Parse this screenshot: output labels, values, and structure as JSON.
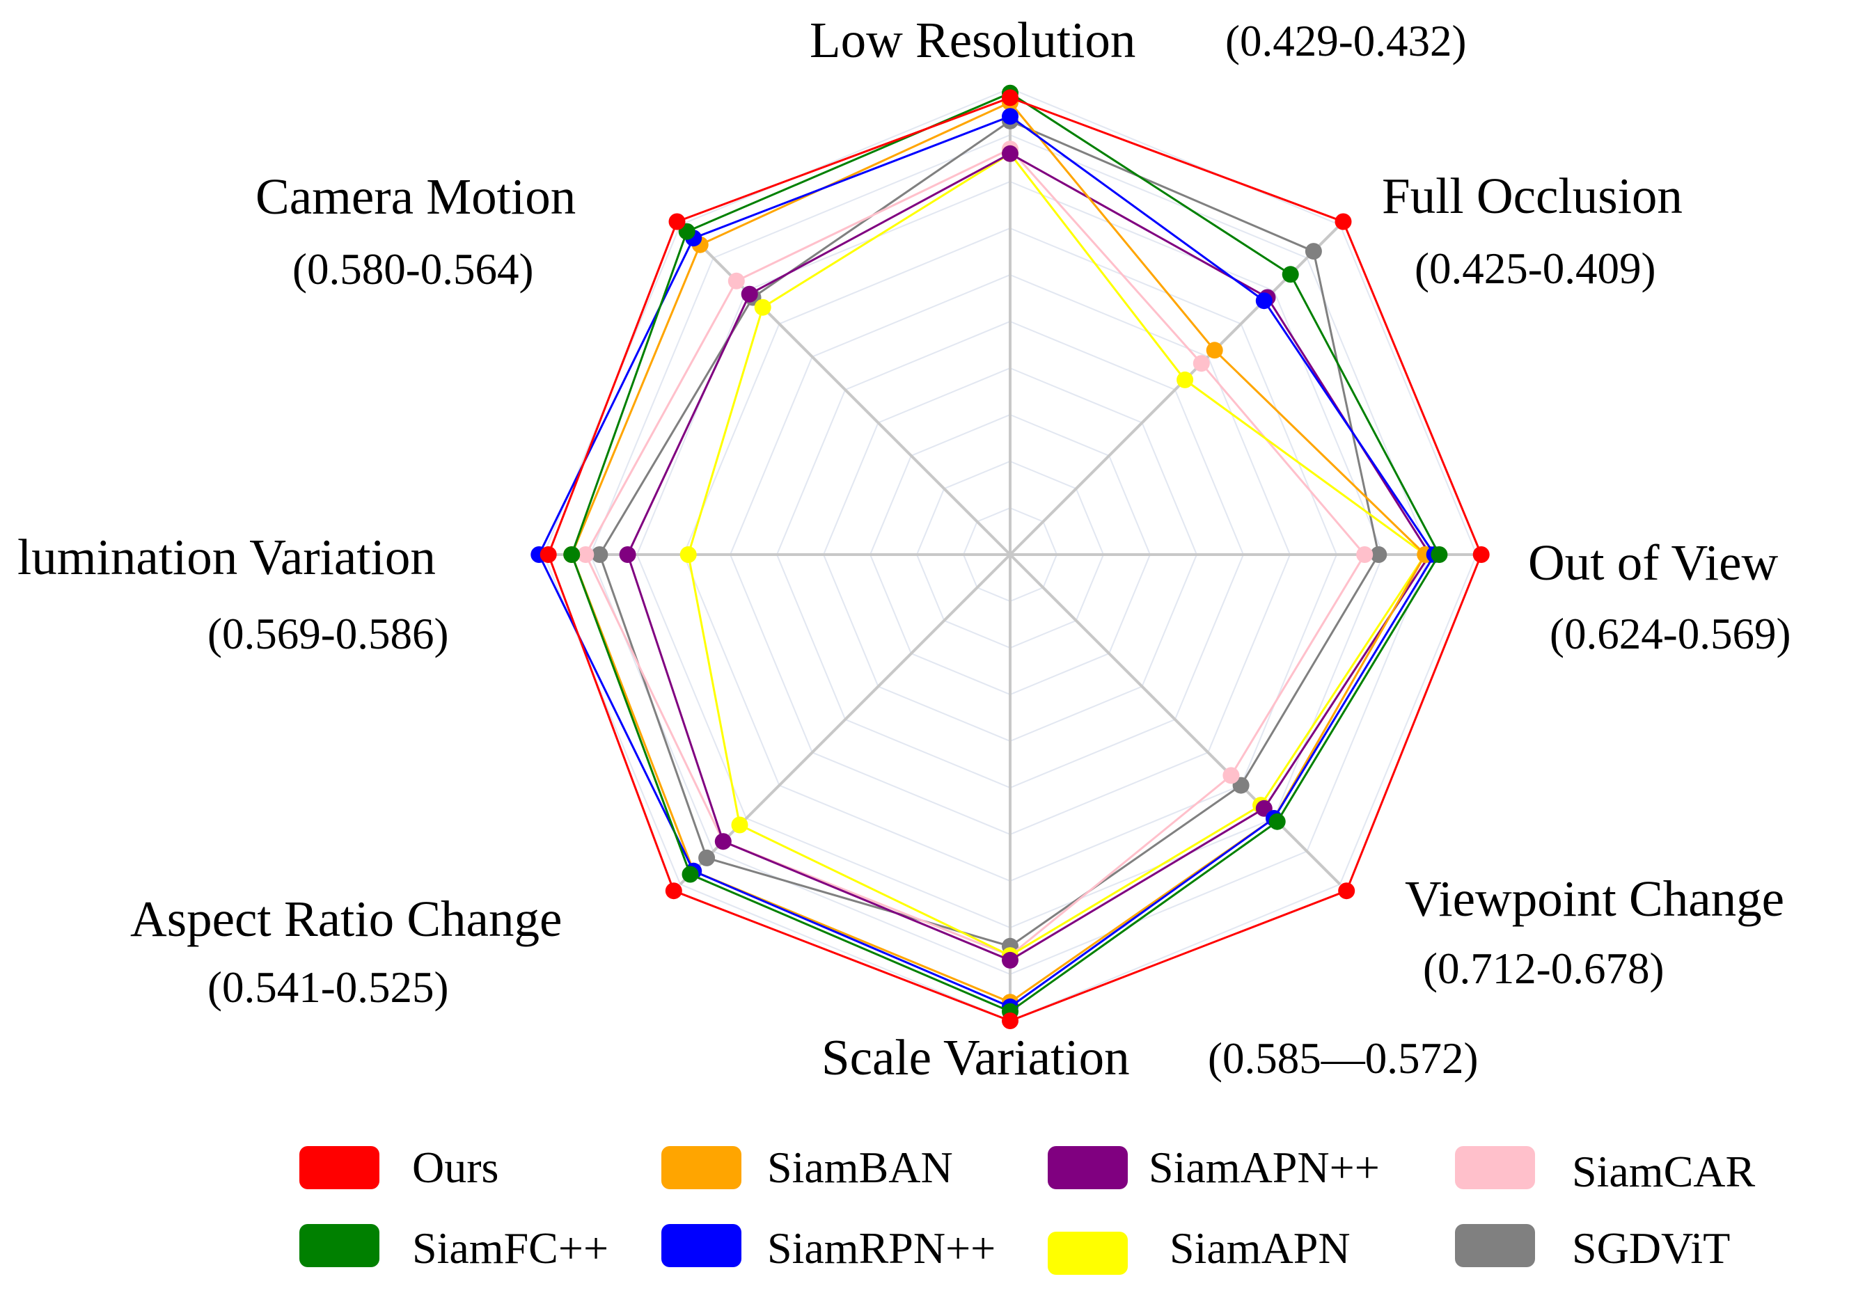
{
  "chart_data": {
    "type": "radar",
    "axes": [
      {
        "title": "Low Resolution",
        "range": "(0.429-0.432)"
      },
      {
        "title": "Full Occlusion",
        "range": "(0.425-0.409)"
      },
      {
        "title": "Out of View",
        "range": "(0.624-0.569)"
      },
      {
        "title": "Viewpoint Change",
        "range": "(0.712-0.678)"
      },
      {
        "title": "Scale Variation",
        "range": "(0.585—0.572)"
      },
      {
        "title": "Aspect Ratio Change",
        "range": "(0.541-0.525)"
      },
      {
        "title": "lumination Variation",
        "range": "(0.569-0.586)"
      },
      {
        "title": "Camera Motion",
        "range": "(0.580-0.564)"
      }
    ],
    "scale": [
      0,
      1
    ],
    "grid_levels": 10,
    "series": [
      {
        "name": "SGDViT",
        "color": "#808080",
        "values": [
          0.93,
          0.92,
          0.79,
          0.7,
          0.84,
          0.92,
          0.88,
          0.78
        ]
      },
      {
        "name": "SiamCAR",
        "color": "#ffc0cb",
        "values": [
          0.87,
          0.58,
          0.76,
          0.67,
          0.86,
          0.87,
          0.91,
          0.83
        ]
      },
      {
        "name": "SiamAPN",
        "color": "#ffff00",
        "values": [
          0.86,
          0.53,
          0.89,
          0.76,
          0.86,
          0.82,
          0.69,
          0.75
        ]
      },
      {
        "name": "SiamAPN++",
        "color": "#800080",
        "values": [
          0.86,
          0.78,
          0.9,
          0.77,
          0.87,
          0.87,
          0.82,
          0.79
        ]
      },
      {
        "name": "SiamBAN",
        "color": "#ffa500",
        "values": [
          0.97,
          0.62,
          0.89,
          0.8,
          0.96,
          0.96,
          0.94,
          0.94
        ]
      },
      {
        "name": "SiamRPN++",
        "color": "#0000ff",
        "values": [
          0.94,
          0.77,
          0.91,
          0.8,
          0.97,
          0.96,
          1.01,
          0.96
        ]
      },
      {
        "name": "SiamFC++",
        "color": "#008000",
        "values": [
          0.99,
          0.85,
          0.92,
          0.81,
          0.98,
          0.97,
          0.94,
          0.98
        ]
      },
      {
        "name": "Ours",
        "color": "#ff0000",
        "values": [
          0.98,
          1.01,
          1.01,
          1.02,
          1.0,
          1.02,
          0.99,
          1.01
        ]
      }
    ],
    "legend": {
      "placement": "bottom",
      "rows": [
        [
          {
            "label": "Ours",
            "color": "#ff0000"
          },
          {
            "label": "SiamBAN",
            "color": "#ffa500"
          },
          {
            "label": "SiamAPN++",
            "color": "#800080"
          },
          {
            "label": "SiamCAR",
            "color": "#ffc0cb"
          }
        ],
        [
          {
            "label": "SiamFC++",
            "color": "#008000"
          },
          {
            "label": "SiamRPN++",
            "color": "#0000ff"
          },
          {
            "label": "SiamAPN",
            "color": "#ffff00"
          },
          {
            "label": "SGDViT",
            "color": "#808080"
          }
        ]
      ]
    }
  }
}
